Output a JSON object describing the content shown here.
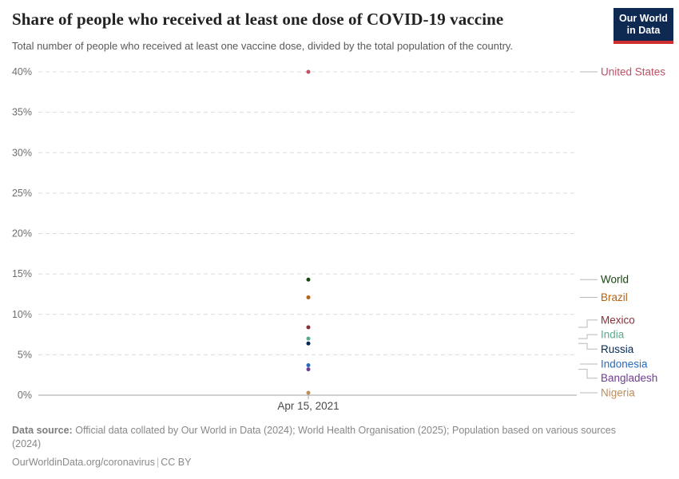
{
  "header": {
    "title": "Share of people who received at least one dose of COVID-19 vaccine",
    "subtitle": "Total number of people who received at least one vaccine dose, divided by the total population of the country."
  },
  "logo": {
    "line1": "Our World",
    "line2": "in Data",
    "bg_color": "#0e2a52",
    "bar_color": "#ce2e31"
  },
  "chart_data": {
    "type": "scatter",
    "title": "Share of people who received at least one dose of COVID-19 vaccine",
    "x_tick_label": "Apr 15, 2021",
    "ylim": [
      0,
      40
    ],
    "yticks": [
      0,
      5,
      10,
      15,
      20,
      25,
      30,
      35,
      40
    ],
    "ytick_suffix": "%",
    "grid": true,
    "legend_position": "right",
    "series": [
      {
        "name": "United States",
        "value": 40.0,
        "label_value": 40.0,
        "color": "#C15065"
      },
      {
        "name": "World",
        "value": 14.3,
        "label_value": 14.3,
        "color": "#18470F"
      },
      {
        "name": "Brazil",
        "value": 12.1,
        "label_value": 12.1,
        "color": "#B16214"
      },
      {
        "name": "Mexico",
        "value": 8.4,
        "label_value": 9.3,
        "color": "#883039"
      },
      {
        "name": "India",
        "value": 7.0,
        "label_value": 7.5,
        "color": "#58AC8C"
      },
      {
        "name": "Russia",
        "value": 6.4,
        "label_value": 5.7,
        "color": "#00295B"
      },
      {
        "name": "Indonesia",
        "value": 3.7,
        "label_value": 3.85,
        "color": "#286BBB"
      },
      {
        "name": "Bangladesh",
        "value": 3.2,
        "label_value": 2.1,
        "color": "#6D3E91"
      },
      {
        "name": "Nigeria",
        "value": 0.3,
        "label_value": 0.3,
        "color": "#BC8E5A"
      }
    ]
  },
  "footer": {
    "source_label": "Data source:",
    "source_text": "Official data collated by Our World in Data (2024); World Health Organisation (2025); Population based on various sources (2024)",
    "url": "OurWorldinData.org/coronavirus",
    "separator": "|",
    "license": "CC BY"
  }
}
